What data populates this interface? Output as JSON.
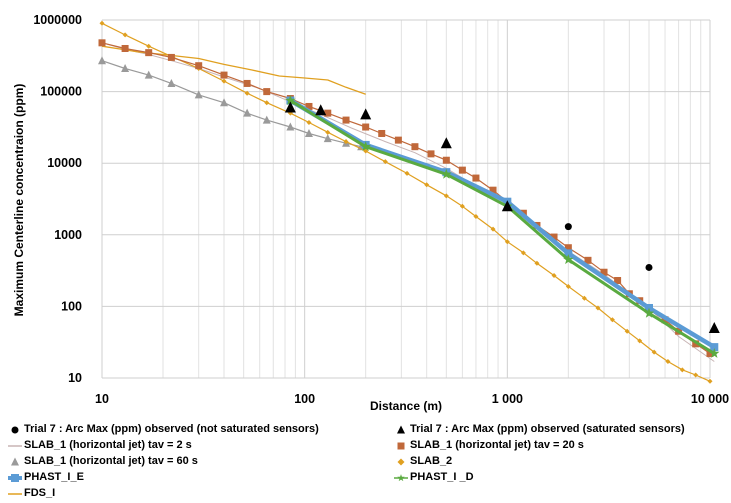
{
  "chart_data": {
    "type": "scatter",
    "xlabel": "Distance (m)",
    "ylabel": "Maximum Centerline concentraion (ppm)",
    "x_scale": "log",
    "y_scale": "log",
    "xlim": [
      10,
      10000
    ],
    "ylim": [
      10,
      1000000
    ],
    "x_ticks": [
      {
        "value": 10,
        "label": "10"
      },
      {
        "value": 100,
        "label": "100"
      },
      {
        "value": 1000,
        "label": "1 000"
      },
      {
        "value": 10000,
        "label": "10 000"
      }
    ],
    "y_ticks": [
      {
        "value": 10,
        "label": "10"
      },
      {
        "value": 100,
        "label": "100"
      },
      {
        "value": 1000,
        "label": "1000"
      },
      {
        "value": 10000,
        "label": "10000"
      },
      {
        "value": 100000,
        "label": "100000"
      },
      {
        "value": 1000000,
        "label": "1000000"
      }
    ],
    "grid": true,
    "legend_position": "bottom",
    "series": [
      {
        "name": "Trial 7 :  Arc Max (ppm) observed (not saturated sensors)",
        "color": "#000000",
        "style": "circle",
        "x": [
          2000,
          5000
        ],
        "y": [
          1300,
          350
        ]
      },
      {
        "name": "Trial 7 :  Arc Max (ppm) observed (saturated sensors)",
        "color": "#000000",
        "style": "triangle",
        "x": [
          85,
          120,
          200,
          500,
          1000,
          10500
        ],
        "y": [
          60000,
          55000,
          48000,
          19000,
          2500,
          50
        ]
      },
      {
        "name": "SLAB_1 (horizontal jet) tav = 2 s",
        "color": "#c8b4b4",
        "style": "line-dash",
        "x": [
          10,
          13,
          17,
          22,
          30,
          40,
          60,
          85,
          120,
          170,
          250,
          350,
          500,
          700,
          1000,
          1400,
          2000,
          3000,
          4000,
          5000,
          7000,
          10500
        ],
        "y": [
          480000,
          390000,
          330000,
          270000,
          210000,
          160000,
          110000,
          72000,
          48000,
          31000,
          20000,
          14000,
          8500,
          4800,
          2700,
          1200,
          590,
          280,
          150,
          95,
          38,
          17
        ]
      },
      {
        "name": "SLAB_1 (horizontal jet) tav = 20 s",
        "color": "#c0683a",
        "style": "square",
        "x": [
          10,
          13,
          17,
          22,
          30,
          40,
          52,
          65,
          85,
          105,
          130,
          160,
          200,
          240,
          290,
          350,
          420,
          500,
          600,
          700,
          850,
          1000,
          1200,
          1400,
          1700,
          2000,
          2500,
          3000,
          3500,
          4000,
          4500,
          5000,
          6000,
          7000,
          8500,
          10000
        ],
        "y": [
          480000,
          400000,
          350000,
          300000,
          230000,
          170000,
          130000,
          100000,
          80000,
          62000,
          50000,
          40000,
          32000,
          26000,
          21000,
          17000,
          13500,
          11000,
          8000,
          6200,
          4200,
          2900,
          2000,
          1350,
          930,
          660,
          440,
          300,
          230,
          150,
          120,
          90,
          65,
          45,
          30,
          22
        ]
      },
      {
        "name": "SLAB_1 (horizontal jet) tav = 60 s",
        "color": "#9a9a9a",
        "style": "triangle",
        "x": [
          10,
          13,
          17,
          22,
          30,
          40,
          52,
          65,
          85,
          105,
          130,
          160,
          190
        ],
        "y": [
          270000,
          210000,
          170000,
          130000,
          90000,
          70000,
          50000,
          40000,
          32000,
          26000,
          22000,
          19000,
          17000
        ]
      },
      {
        "name": "SLAB_2",
        "color": "#e0a020",
        "style": "diamond",
        "x": [
          10,
          13,
          17,
          22,
          30,
          40,
          52,
          65,
          85,
          105,
          130,
          160,
          200,
          250,
          320,
          400,
          500,
          600,
          700,
          850,
          1000,
          1200,
          1400,
          1700,
          2000,
          2400,
          2800,
          3300,
          3900,
          4500,
          5300,
          6200,
          7300,
          8500,
          10000
        ],
        "y": [
          900000,
          620000,
          430000,
          310000,
          210000,
          140000,
          95000,
          70000,
          50000,
          37000,
          27000,
          20000,
          14800,
          10500,
          7200,
          5000,
          3500,
          2500,
          1800,
          1200,
          800,
          560,
          400,
          270,
          190,
          130,
          95,
          65,
          45,
          33,
          23,
          17,
          13,
          11,
          9
        ]
      },
      {
        "name": "PHAST_I_E",
        "color": "#5b9bd5",
        "style": "line-square",
        "x": [
          85,
          200,
          500,
          1000,
          2000,
          5000,
          10500
        ],
        "y": [
          75000,
          18000,
          7500,
          2900,
          550,
          95,
          27
        ]
      },
      {
        "name": "PHAST_I _D",
        "color": "#5aaa40",
        "style": "line-star",
        "x": [
          85,
          200,
          500,
          1000,
          2000,
          5000,
          10500
        ],
        "y": [
          75000,
          17000,
          7000,
          2500,
          450,
          80,
          22
        ]
      },
      {
        "name": "FDS_I",
        "color": "#e0a020",
        "style": "line",
        "x": [
          10,
          15,
          20,
          30,
          40,
          55,
          75,
          100,
          130,
          160,
          200
        ],
        "y": [
          430000,
          360000,
          330000,
          290000,
          240000,
          200000,
          165000,
          155000,
          145000,
          115000,
          92000
        ]
      }
    ]
  }
}
